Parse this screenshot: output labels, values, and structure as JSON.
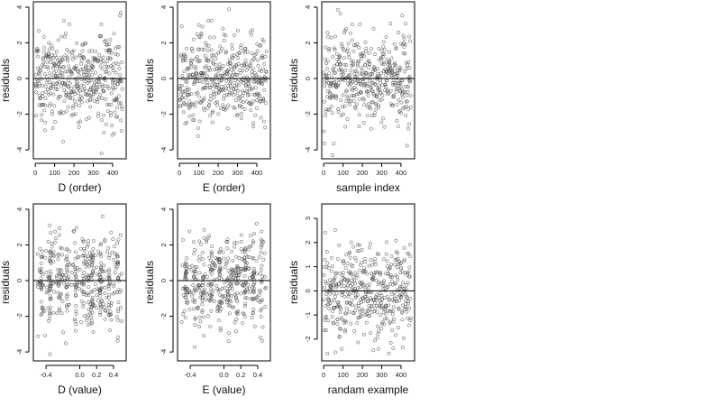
{
  "chart_data": [
    {
      "type": "scatter",
      "id": "D_order",
      "xlabel": "D (order)",
      "ylabel": "residuals",
      "xlim": [
        -10,
        470
      ],
      "ylim": [
        -4.5,
        4.3
      ],
      "xticks": [
        0,
        100,
        200,
        300,
        400
      ],
      "xtick_labels": [
        "0",
        "100",
        "200",
        "300",
        "400"
      ],
      "yticks": [
        -4,
        -2,
        0,
        2,
        4
      ],
      "ytick_labels": [
        "-4",
        "-2",
        "0",
        "2",
        "4"
      ],
      "reference_line": 0,
      "n_points": 450,
      "x_range": [
        1,
        450
      ],
      "residual_sd": 1.25,
      "residual_range": [
        -4.3,
        4.1
      ]
    },
    {
      "type": "scatter",
      "id": "E_order",
      "xlabel": "E (order)",
      "ylabel": "residuals",
      "xlim": [
        -10,
        470
      ],
      "ylim": [
        -4.5,
        4.3
      ],
      "xticks": [
        0,
        100,
        200,
        300,
        400
      ],
      "xtick_labels": [
        "0",
        "100",
        "200",
        "300",
        "400"
      ],
      "yticks": [
        -4,
        -2,
        0,
        2,
        4
      ],
      "ytick_labels": [
        "-4",
        "-2",
        "0",
        "2",
        "4"
      ],
      "reference_line": 0,
      "n_points": 450,
      "x_range": [
        1,
        450
      ],
      "residual_sd": 1.25,
      "residual_range": [
        -4.3,
        4.1
      ]
    },
    {
      "type": "scatter",
      "id": "sample_index",
      "xlabel": "sample index",
      "ylabel": "residuals",
      "xlim": [
        -10,
        470
      ],
      "ylim": [
        -4.5,
        4.3
      ],
      "xticks": [
        0,
        100,
        200,
        300,
        400
      ],
      "xtick_labels": [
        "0",
        "100",
        "200",
        "300",
        "400"
      ],
      "yticks": [
        -4,
        -2,
        0,
        2,
        4
      ],
      "ytick_labels": [
        "-4",
        "-2",
        "0",
        "2",
        "4"
      ],
      "reference_line": 0,
      "n_points": 450,
      "x_range": [
        1,
        450
      ],
      "residual_sd": 1.25,
      "residual_range": [
        -4.3,
        4.1
      ]
    },
    {
      "type": "scatter",
      "id": "D_value",
      "xlabel": "D (value)",
      "ylabel": "residuals",
      "xlim": [
        -0.55,
        0.55
      ],
      "ylim": [
        -4.5,
        4.3
      ],
      "xticks": [
        -0.4,
        0,
        0.2,
        0.4
      ],
      "xtick_labels": [
        "-0.4",
        "0.0",
        "0.2",
        "0.4"
      ],
      "yticks": [
        -4,
        -2,
        0,
        2,
        4
      ],
      "ytick_labels": [
        "-4",
        "-2",
        "0",
        "2",
        "4"
      ],
      "reference_line": 0,
      "n_points": 450,
      "x_range": [
        -0.5,
        0.5
      ],
      "residual_sd": 1.25,
      "residual_range": [
        -4.3,
        4.1
      ]
    },
    {
      "type": "scatter",
      "id": "E_value",
      "xlabel": "E (value)",
      "ylabel": "residuals",
      "xlim": [
        -0.55,
        0.55
      ],
      "ylim": [
        -4.5,
        4.3
      ],
      "xticks": [
        -0.4,
        0,
        0.2,
        0.4
      ],
      "xtick_labels": [
        "-0.4",
        "0.0",
        "0.2",
        "0.4"
      ],
      "yticks": [
        -4,
        -2,
        0,
        2,
        4
      ],
      "ytick_labels": [
        "-4",
        "-2",
        "0",
        "2",
        "4"
      ],
      "reference_line": 0,
      "n_points": 450,
      "x_range": [
        -0.5,
        0.5
      ],
      "residual_sd": 1.25,
      "residual_range": [
        -4.3,
        4.1
      ]
    },
    {
      "type": "scatter",
      "id": "random_example",
      "xlabel": "randam example",
      "ylabel": "residuals",
      "xlim": [
        -10,
        470
      ],
      "ylim": [
        -2.9,
        3.6
      ],
      "xticks": [
        0,
        100,
        200,
        300,
        400
      ],
      "xtick_labels": [
        "0",
        "100",
        "200",
        "300",
        "400"
      ],
      "yticks": [
        -2,
        -1,
        0,
        1,
        2,
        3
      ],
      "ytick_labels": [
        "-2",
        "-1",
        "0",
        "1",
        "2",
        "3"
      ],
      "reference_line": 0,
      "n_points": 450,
      "x_range": [
        1,
        450
      ],
      "residual_sd": 1.0,
      "residual_range": [
        -2.6,
        3.3
      ]
    }
  ]
}
